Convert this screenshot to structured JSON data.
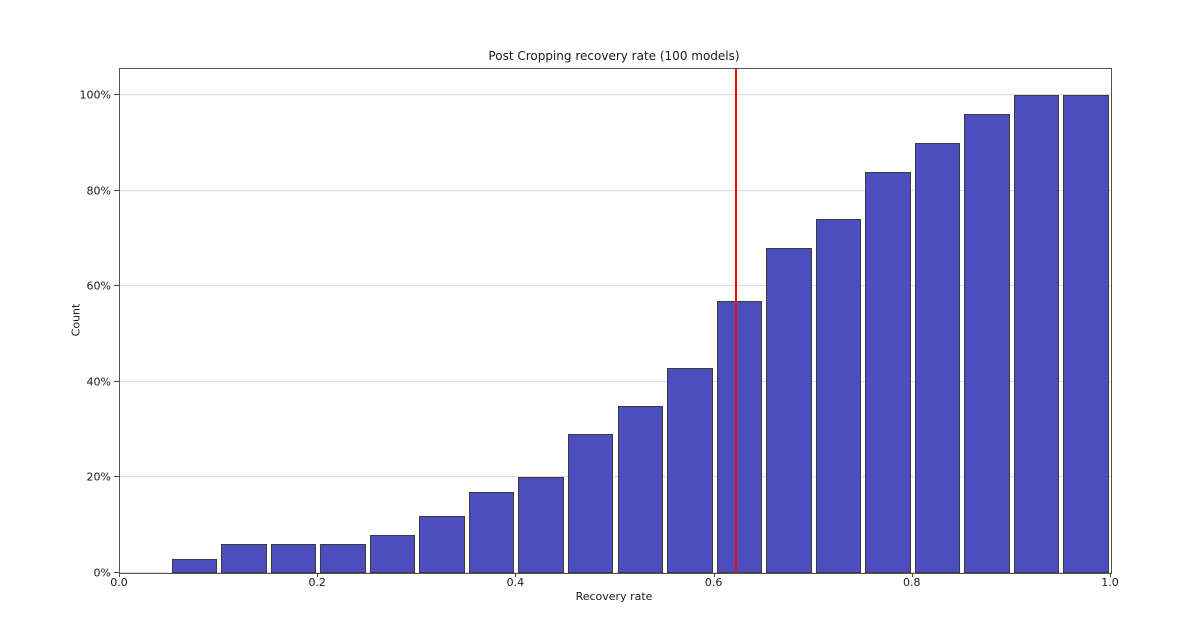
{
  "chart_data": {
    "type": "bar",
    "title": "Post Cropping recovery rate (100 models)",
    "xlabel": "Recovery rate",
    "ylabel": "Count",
    "bin_width": 0.05,
    "bin_starts": [
      0.05,
      0.1,
      0.15,
      0.2,
      0.25,
      0.3,
      0.35,
      0.4,
      0.45,
      0.5,
      0.55,
      0.6,
      0.65,
      0.7,
      0.75,
      0.8,
      0.85,
      0.9,
      0.95
    ],
    "values_percent": [
      3,
      6,
      6,
      6,
      8,
      12,
      17,
      20,
      29,
      35,
      43,
      57,
      68,
      74,
      84,
      90,
      96,
      100,
      100
    ],
    "x_ticks": [
      {
        "value": 0.0,
        "label": "0.0"
      },
      {
        "value": 0.2,
        "label": "0.2"
      },
      {
        "value": 0.4,
        "label": "0.4"
      },
      {
        "value": 0.6,
        "label": "0.6"
      },
      {
        "value": 0.8,
        "label": "0.8"
      },
      {
        "value": 1.0,
        "label": "1.0"
      }
    ],
    "y_ticks": [
      {
        "value": 0,
        "label": "0%"
      },
      {
        "value": 20,
        "label": "20%"
      },
      {
        "value": 40,
        "label": "40%"
      },
      {
        "value": 60,
        "label": "60%"
      },
      {
        "value": 80,
        "label": "80%"
      },
      {
        "value": 100,
        "label": "100%"
      }
    ],
    "xlim": [
      0.0,
      1.0
    ],
    "ylim": [
      0,
      105.5
    ],
    "grid": "horizontal",
    "legend": "none",
    "vline": {
      "x": 0.622,
      "color": "#ff0000"
    },
    "colors": {
      "bar_fill": "#4c4ebd",
      "bar_edge": "#3b3b3b",
      "gridline": "#dcdcdc",
      "background": "#ffffff"
    }
  }
}
